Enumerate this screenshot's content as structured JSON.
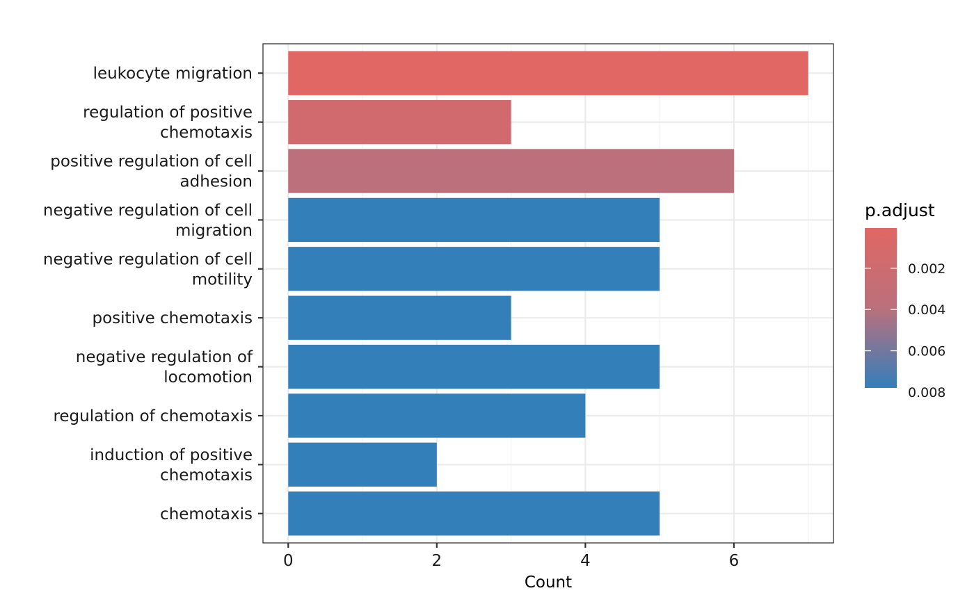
{
  "chart_data": {
    "type": "bar",
    "orientation": "horizontal",
    "categories": [
      [
        "leukocyte migration"
      ],
      [
        "regulation of positive",
        "chemotaxis"
      ],
      [
        "positive regulation of cell",
        "adhesion"
      ],
      [
        "negative regulation of cell",
        "migration"
      ],
      [
        "negative regulation of cell",
        "motility"
      ],
      [
        "positive chemotaxis"
      ],
      [
        "negative regulation of",
        "locomotion"
      ],
      [
        "regulation of chemotaxis"
      ],
      [
        "induction of positive",
        "chemotaxis"
      ],
      [
        "chemotaxis"
      ]
    ],
    "values": [
      7,
      3,
      6,
      5,
      5,
      3,
      5,
      4,
      2,
      5
    ],
    "bar_colors": [
      "#e06764",
      "#d06a6e",
      "#bc707b",
      "#337fba",
      "#337fba",
      "#337fba",
      "#337fba",
      "#337fba",
      "#337fba",
      "#337fba"
    ],
    "xlabel": "Count",
    "ylabel": "",
    "xlim": [
      -0.34,
      7.34
    ],
    "xticks": [
      0,
      2,
      4,
      6
    ],
    "grid": true,
    "legend": {
      "title": "p.adjust",
      "type": "colorbar",
      "placement": "right",
      "range": [
        5e-05,
        0.0078
      ],
      "ticks": [
        0.002,
        0.004,
        0.006,
        0.008
      ],
      "tick_labels": [
        "0.002",
        "0.004",
        "0.006",
        "0.008"
      ],
      "color_low": "#e06764",
      "color_high": "#337fba"
    }
  }
}
